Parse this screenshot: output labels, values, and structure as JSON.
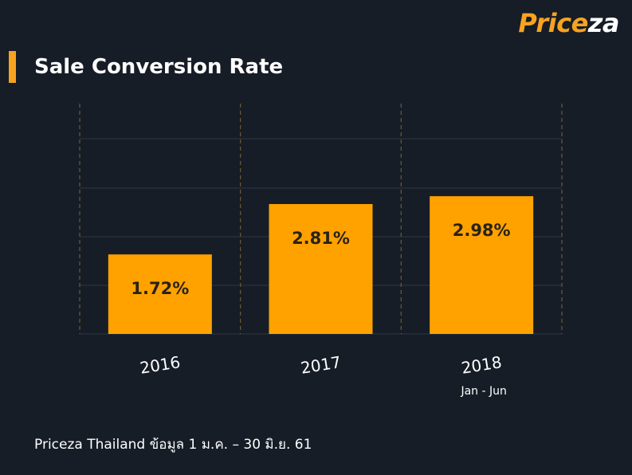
{
  "brand": {
    "logo_part1": "Price",
    "logo_part2": "za"
  },
  "colors": {
    "accent": "#f7a320",
    "background": "#161d27",
    "bar": "#ffa200",
    "bar_label": "#2a2218",
    "grid": "#2e3744",
    "divider": "#6e5a2c"
  },
  "footer": "Priceza Thailand ข้อมูล 1 ม.ค. – 30 มิ.ย. 61",
  "chart_data": {
    "type": "bar",
    "title": "Sale Conversion Rate",
    "categories": [
      "2016",
      "2017",
      "2018"
    ],
    "category_sublabels": [
      "",
      "",
      "Jan - Jun"
    ],
    "values": [
      1.72,
      2.81,
      2.98
    ],
    "value_labels": [
      "1.72%",
      "2.81%",
      "2.98%"
    ],
    "unit": "%",
    "ylim": [
      0,
      3
    ],
    "grid": true,
    "legend": "none"
  }
}
